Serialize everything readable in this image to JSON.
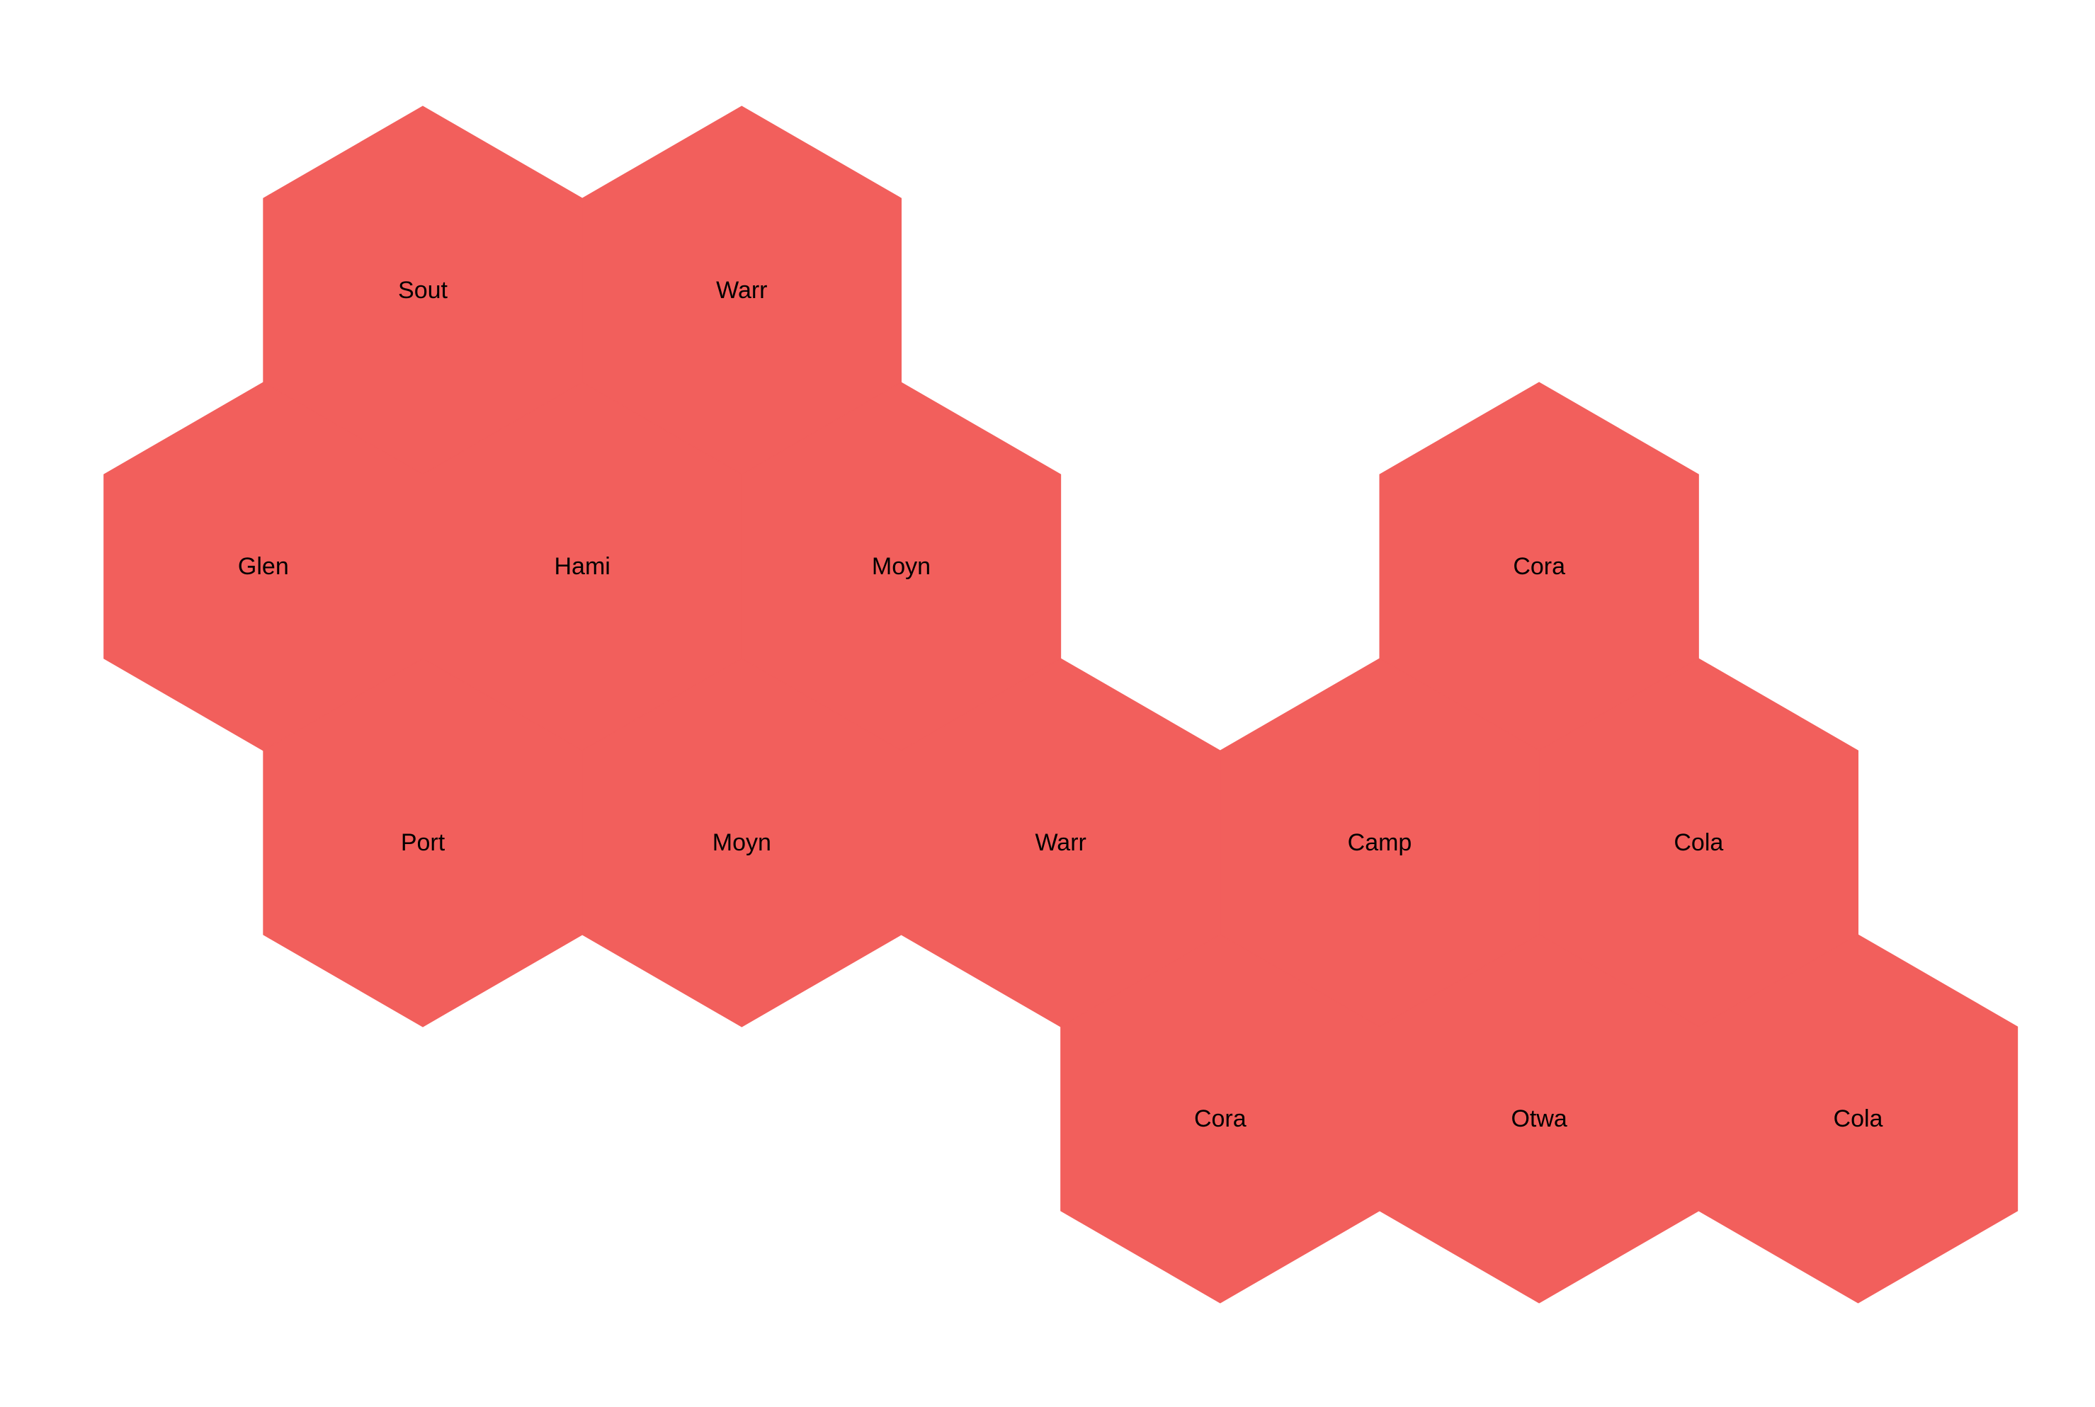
{
  "map": {
    "fill_color": "#f25f5c",
    "label_color": "#000000",
    "background_color": "#ffffff",
    "hexes": [
      {
        "label": "Sout",
        "col": 0,
        "row": 0
      },
      {
        "label": "Warr",
        "col": 1,
        "row": 0
      },
      {
        "label": "Glen",
        "col": 0,
        "row": 1
      },
      {
        "label": "Hami",
        "col": 1,
        "row": 1
      },
      {
        "label": "Moyn",
        "col": 2,
        "row": 1
      },
      {
        "label": "Cora",
        "col": 4,
        "row": 1
      },
      {
        "label": "Port",
        "col": 0,
        "row": 2
      },
      {
        "label": "Moyn",
        "col": 1,
        "row": 2
      },
      {
        "label": "Warr",
        "col": 2,
        "row": 2
      },
      {
        "label": "Camp",
        "col": 3,
        "row": 2
      },
      {
        "label": "Cola",
        "col": 4,
        "row": 2
      },
      {
        "label": "Cora",
        "col": 3,
        "row": 3
      },
      {
        "label": "Otwa",
        "col": 4,
        "row": 3
      },
      {
        "label": "Cola",
        "col": 5,
        "row": 3
      }
    ]
  }
}
